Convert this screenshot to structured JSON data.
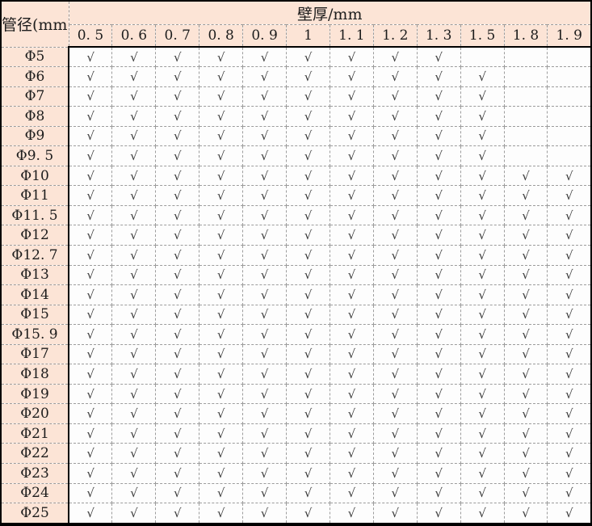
{
  "table": {
    "corner_header": "管径(mm)",
    "top_header": "壁厚/mm",
    "check_glyph": "√",
    "columns": [
      "0. 5",
      "0. 6",
      "0. 7",
      "0. 8",
      "0. 9",
      "1",
      "1. 1",
      "1. 2",
      "1. 3",
      "1. 5",
      "1. 8",
      "1. 9"
    ],
    "rows": [
      {
        "label": "Φ5",
        "checks": [
          1,
          1,
          1,
          1,
          1,
          1,
          1,
          1,
          1,
          0,
          0,
          0
        ]
      },
      {
        "label": "Φ6",
        "checks": [
          1,
          1,
          1,
          1,
          1,
          1,
          1,
          1,
          1,
          1,
          0,
          0
        ]
      },
      {
        "label": "Φ7",
        "checks": [
          1,
          1,
          1,
          1,
          1,
          1,
          1,
          1,
          1,
          1,
          0,
          0
        ]
      },
      {
        "label": "Φ8",
        "checks": [
          1,
          1,
          1,
          1,
          1,
          1,
          1,
          1,
          1,
          1,
          0,
          0
        ]
      },
      {
        "label": "Φ9",
        "checks": [
          1,
          1,
          1,
          1,
          1,
          1,
          1,
          1,
          1,
          1,
          0,
          0
        ]
      },
      {
        "label": "Φ9. 5",
        "checks": [
          1,
          1,
          1,
          1,
          1,
          1,
          1,
          1,
          1,
          1,
          0,
          0
        ]
      },
      {
        "label": "Φ10",
        "checks": [
          1,
          1,
          1,
          1,
          1,
          1,
          1,
          1,
          1,
          1,
          1,
          1
        ]
      },
      {
        "label": "Φ11",
        "checks": [
          1,
          1,
          1,
          1,
          1,
          1,
          1,
          1,
          1,
          1,
          1,
          1
        ]
      },
      {
        "label": "Φ11. 5",
        "checks": [
          1,
          1,
          1,
          1,
          1,
          1,
          1,
          1,
          1,
          1,
          1,
          1
        ]
      },
      {
        "label": "Φ12",
        "checks": [
          1,
          1,
          1,
          1,
          1,
          1,
          1,
          1,
          1,
          1,
          1,
          1
        ]
      },
      {
        "label": "Φ12. 7",
        "checks": [
          1,
          1,
          1,
          1,
          1,
          1,
          1,
          1,
          1,
          1,
          1,
          1
        ]
      },
      {
        "label": "Φ13",
        "checks": [
          1,
          1,
          1,
          1,
          1,
          1,
          1,
          1,
          1,
          1,
          1,
          1
        ]
      },
      {
        "label": "Φ14",
        "checks": [
          1,
          1,
          1,
          1,
          1,
          1,
          1,
          1,
          1,
          1,
          1,
          1
        ]
      },
      {
        "label": "Φ15",
        "checks": [
          1,
          1,
          1,
          1,
          1,
          1,
          1,
          1,
          1,
          1,
          1,
          1
        ]
      },
      {
        "label": "Φ15. 9",
        "checks": [
          1,
          1,
          1,
          1,
          1,
          1,
          1,
          1,
          1,
          1,
          1,
          1
        ]
      },
      {
        "label": "Φ17",
        "checks": [
          1,
          1,
          1,
          1,
          1,
          1,
          1,
          1,
          1,
          1,
          1,
          1
        ]
      },
      {
        "label": "Φ18",
        "checks": [
          1,
          1,
          1,
          1,
          1,
          1,
          1,
          1,
          1,
          1,
          1,
          1
        ]
      },
      {
        "label": "Φ19",
        "checks": [
          1,
          1,
          1,
          1,
          1,
          1,
          1,
          1,
          1,
          1,
          1,
          1
        ]
      },
      {
        "label": "Φ20",
        "checks": [
          1,
          1,
          1,
          1,
          1,
          1,
          1,
          1,
          1,
          1,
          1,
          1
        ]
      },
      {
        "label": "Φ21",
        "checks": [
          1,
          1,
          1,
          1,
          1,
          1,
          1,
          1,
          1,
          1,
          1,
          1
        ]
      },
      {
        "label": "Φ22",
        "checks": [
          1,
          1,
          1,
          1,
          1,
          1,
          1,
          1,
          1,
          1,
          1,
          1
        ]
      },
      {
        "label": "Φ23",
        "checks": [
          1,
          1,
          1,
          1,
          1,
          1,
          1,
          1,
          1,
          1,
          1,
          1
        ]
      },
      {
        "label": "Φ24",
        "checks": [
          1,
          1,
          1,
          1,
          1,
          1,
          1,
          1,
          1,
          1,
          1,
          1
        ]
      },
      {
        "label": "Φ25",
        "checks": [
          1,
          1,
          1,
          1,
          1,
          1,
          1,
          1,
          1,
          1,
          1,
          1
        ]
      }
    ]
  },
  "colors": {
    "header_bg": "#fce4d6",
    "body_bg": "#fdfdfd",
    "solid_border": "#000000",
    "dashed_border": "#9c9c9c",
    "check": "#3c3c3c"
  }
}
